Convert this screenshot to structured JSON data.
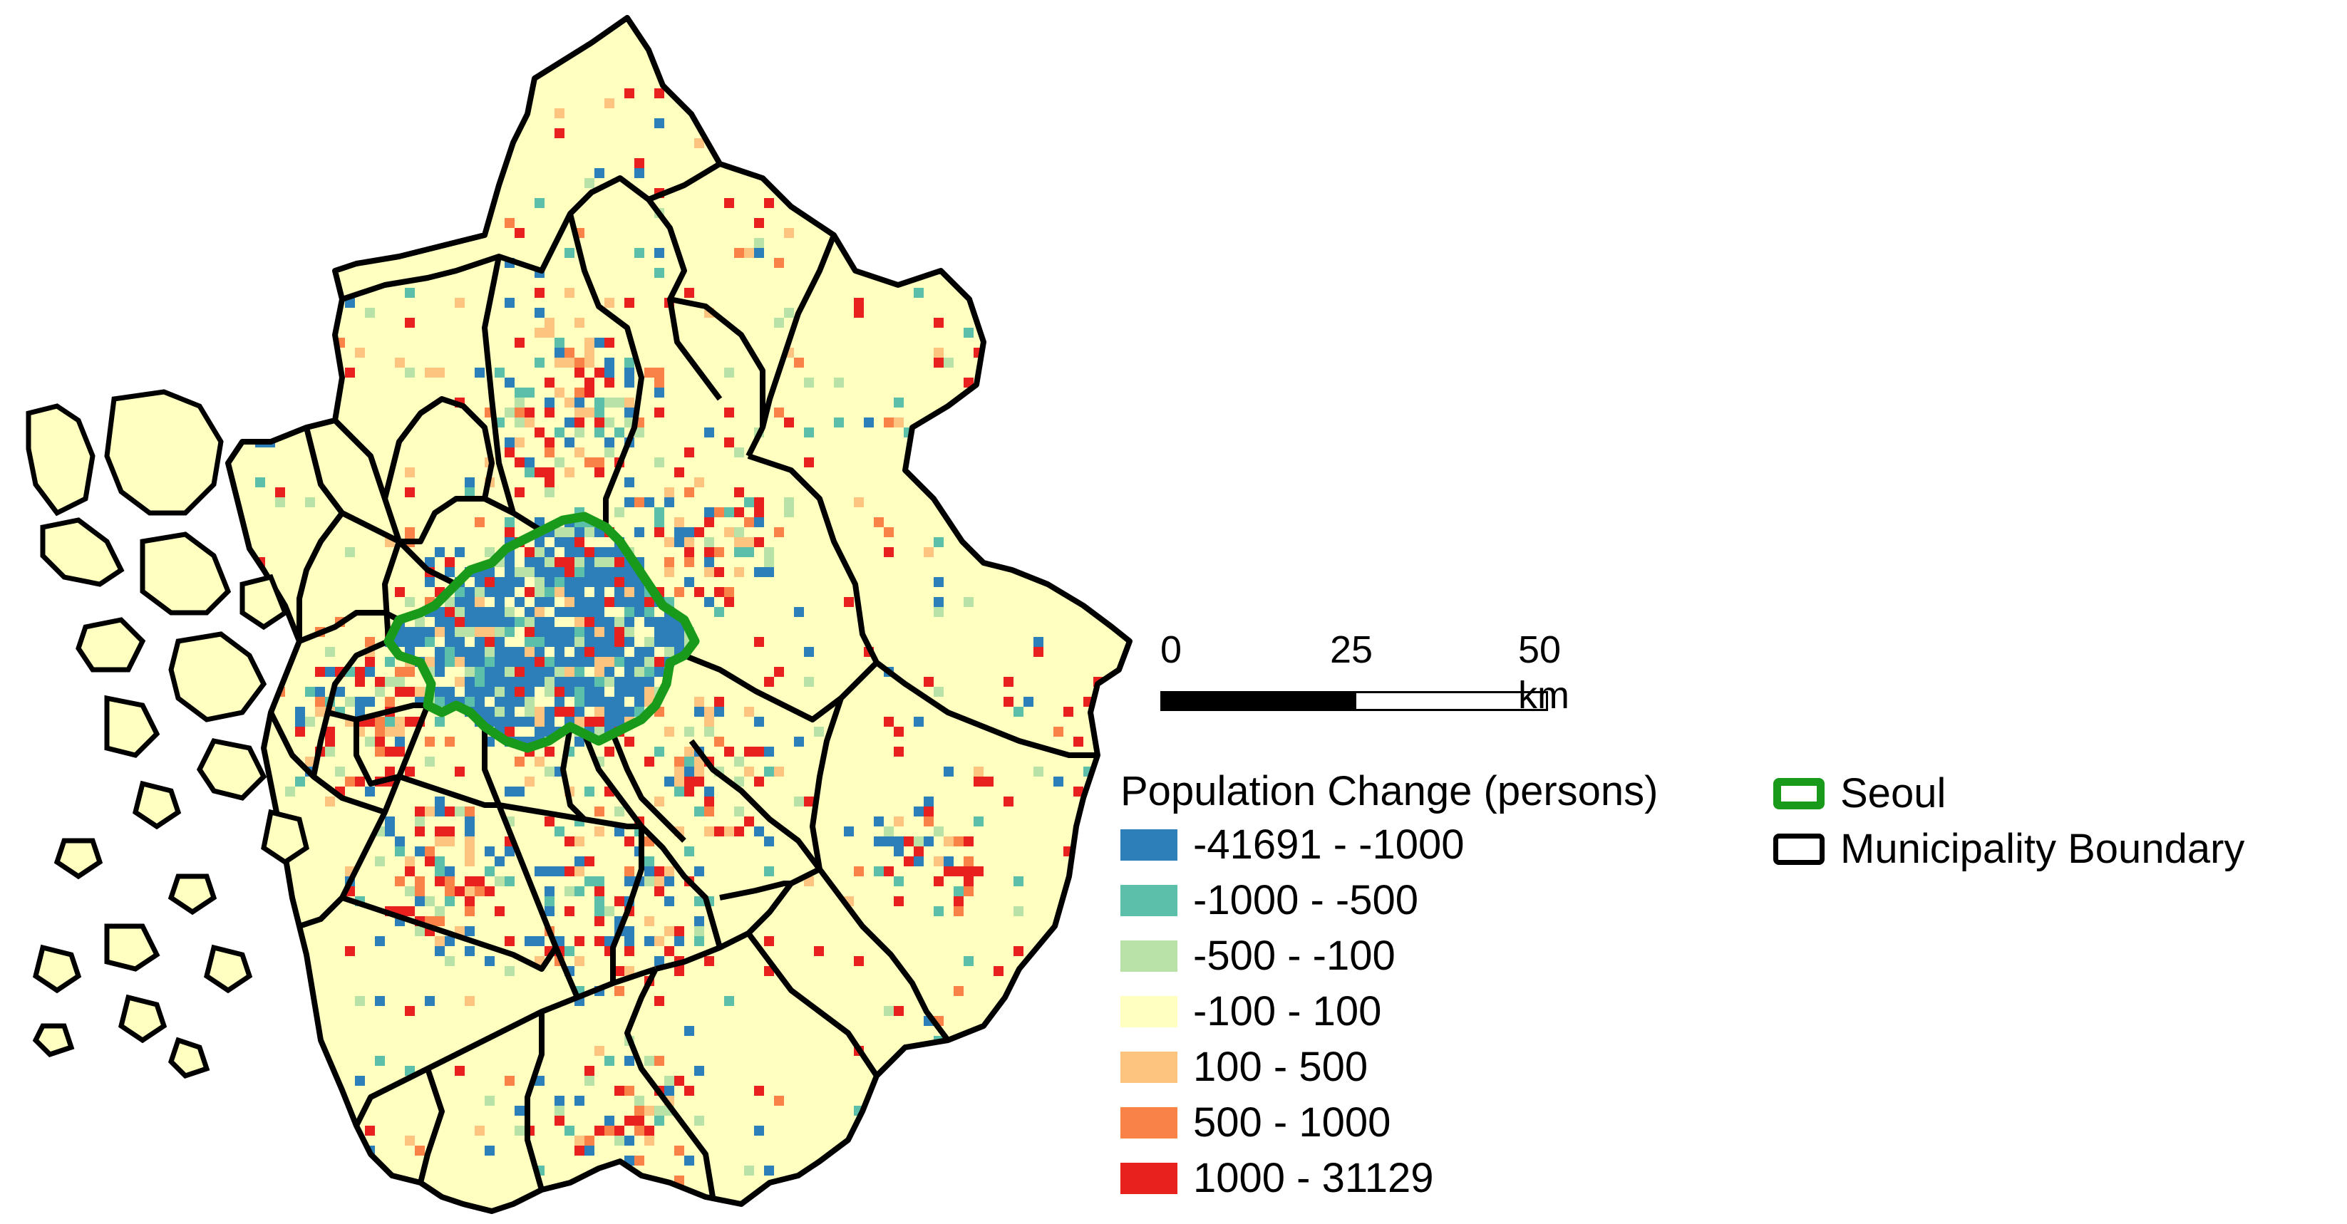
{
  "map": {
    "region_fill": "#ffffbf",
    "boundary_color": "#000000",
    "seoul_color": "#1a9a1a"
  },
  "scalebar": {
    "tick_0": "0",
    "tick_25": "25",
    "tick_50": "50 km"
  },
  "legend": {
    "title": "Population Change (persons)",
    "classes": [
      {
        "label": "-41691 - -1000",
        "color": "#2c7fb8"
      },
      {
        "label": "-1000 - -500",
        "color": "#5bbfaa"
      },
      {
        "label": "-500 - -100",
        "color": "#b8e2a6"
      },
      {
        "label": "-100 - 100",
        "color": "#ffffbf"
      },
      {
        "label": "100 - 500",
        "color": "#fdc47f"
      },
      {
        "label": "500 - 1000",
        "color": "#f98246"
      },
      {
        "label": "1000 - 31129",
        "color": "#e8211f"
      }
    ]
  },
  "boundary_legend": {
    "items": [
      {
        "label": "Seoul",
        "color": "#1a9a1a",
        "icon": "green-outline-box"
      },
      {
        "label": "Municipality Boundary",
        "color": "#000000",
        "icon": "black-outline-box"
      }
    ]
  }
}
